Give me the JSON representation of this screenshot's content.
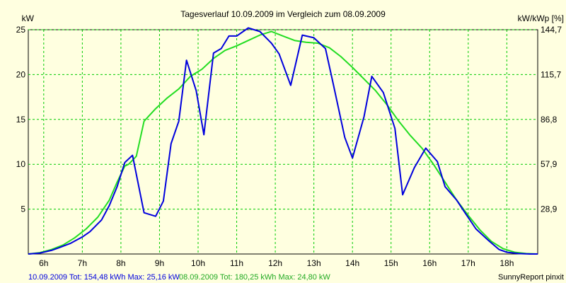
{
  "chart_data": {
    "type": "line",
    "title": "Tagesverlauf 10.09.2009 im Vergleich zum 08.09.2009",
    "ylabel_left": "kW",
    "ylabel_right": "kW/kWp [%]",
    "x_ticks": [
      "6h",
      "7h",
      "8h",
      "9h",
      "10h",
      "11h",
      "12h",
      "13h",
      "14h",
      "15h",
      "16h",
      "17h",
      "18h"
    ],
    "xlim": [
      5.6,
      18.8
    ],
    "ylim": [
      0,
      25
    ],
    "y_ticks_left": [
      "5",
      "10",
      "15",
      "20",
      "25"
    ],
    "y_ticks_right": [
      "28,9",
      "57,9",
      "86,8",
      "115,7",
      "144,7"
    ],
    "grid": true,
    "colors": {
      "series1": "#0000dd",
      "series2": "#22dd22",
      "grid": "#00cc00",
      "background": "#ffffe0"
    },
    "series": [
      {
        "name": "10.09.2009",
        "x": [
          5.6,
          5.9,
          6.2,
          6.4,
          6.7,
          7.0,
          7.2,
          7.5,
          7.7,
          7.9,
          8.1,
          8.3,
          8.6,
          8.9,
          9.1,
          9.3,
          9.5,
          9.7,
          9.95,
          10.15,
          10.4,
          10.6,
          10.8,
          11.0,
          11.3,
          11.6,
          11.9,
          12.1,
          12.4,
          12.7,
          13.0,
          13.3,
          13.5,
          13.8,
          14.0,
          14.3,
          14.5,
          14.8,
          15.1,
          15.3,
          15.6,
          15.9,
          16.2,
          16.4,
          16.7,
          16.9,
          17.2,
          17.5,
          17.8,
          18.0,
          18.3,
          18.6,
          18.8
        ],
        "values": [
          0,
          0.1,
          0.4,
          0.7,
          1.2,
          1.9,
          2.5,
          3.8,
          5.4,
          7.5,
          10.2,
          11,
          4.6,
          4.2,
          5.9,
          12.3,
          14.8,
          21.6,
          18.2,
          13.3,
          22.4,
          22.9,
          24.3,
          24.3,
          25.2,
          24.8,
          23.5,
          22.3,
          18.8,
          24.4,
          24.1,
          22.9,
          19.0,
          13.0,
          10.7,
          15.3,
          19.8,
          18.0,
          14.0,
          6.6,
          9.6,
          11.8,
          10.3,
          7.5,
          6.0,
          4.7,
          2.8,
          1.6,
          0.5,
          0.2,
          0.05,
          0,
          0
        ]
      },
      {
        "name": "08.09.2009",
        "x": [
          5.6,
          5.9,
          6.2,
          6.5,
          6.8,
          7.1,
          7.4,
          7.7,
          7.9,
          8.1,
          8.2,
          8.4,
          8.6,
          8.9,
          9.2,
          9.5,
          9.8,
          10.1,
          10.4,
          10.7,
          11.0,
          11.3,
          11.6,
          11.9,
          12.2,
          12.5,
          12.8,
          13.1,
          13.4,
          13.7,
          14.0,
          14.3,
          14.6,
          14.9,
          15.2,
          15.5,
          15.8,
          16.1,
          16.4,
          16.7,
          17.0,
          17.3,
          17.6,
          17.9,
          18.2,
          18.5,
          18.8
        ],
        "values": [
          0,
          0.15,
          0.5,
          1.0,
          1.8,
          2.8,
          4.1,
          6.0,
          8.0,
          9.8,
          10.0,
          10.9,
          14.8,
          16.2,
          17.4,
          18.4,
          19.8,
          20.6,
          21.8,
          22.7,
          23.2,
          23.8,
          24.4,
          24.8,
          24.3,
          23.8,
          23.6,
          23.5,
          23.0,
          22.0,
          20.8,
          19.5,
          18.2,
          16.6,
          14.8,
          13.2,
          11.8,
          10.0,
          8.0,
          6.0,
          4.3,
          2.7,
          1.4,
          0.6,
          0.2,
          0.05,
          0
        ]
      }
    ]
  },
  "footer": {
    "series1_summary": "10.09.2009 Tot: 154,48 kWh Max: 25,16 kW",
    "series2_summary": "08.09.2009 Tot: 180,25 kWh Max: 24,80 kW",
    "credit": "SunnyReport pinxit"
  }
}
